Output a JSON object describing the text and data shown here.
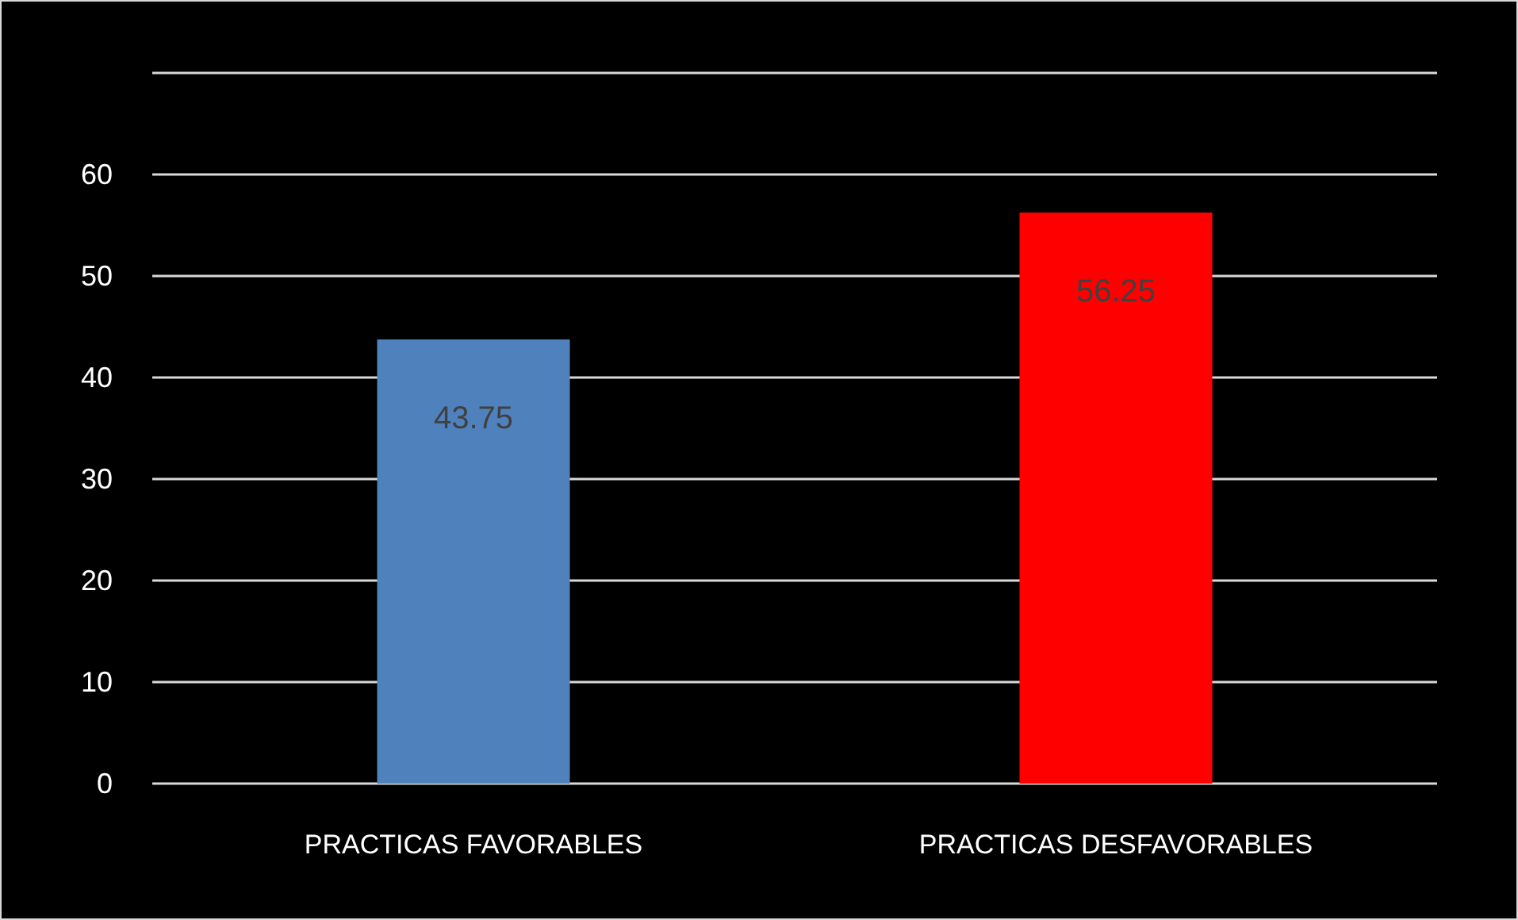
{
  "chart_data": {
    "type": "bar",
    "categories": [
      "PRACTICAS FAVORABLES",
      "PRACTICAS DESFAVORABLES"
    ],
    "values": [
      43.75,
      56.25
    ],
    "colors": [
      "#4f81bd",
      "#ff0000"
    ],
    "ylim": [
      0,
      70
    ],
    "yticks": [
      0,
      10,
      20,
      30,
      40,
      50,
      60,
      {
        "value": 70,
        "label": null
      }
    ],
    "grid": true,
    "data_labels": true
  }
}
